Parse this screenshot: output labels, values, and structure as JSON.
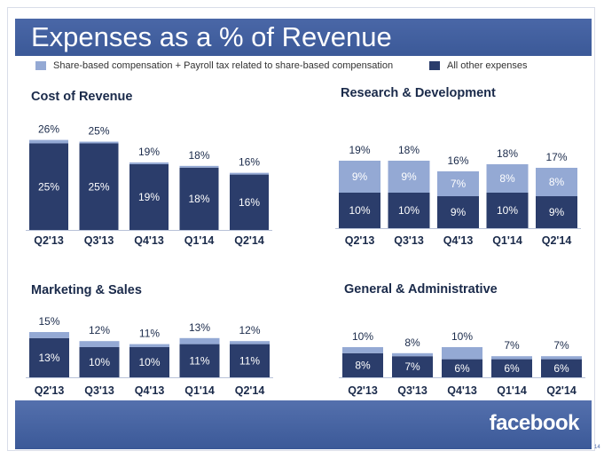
{
  "slide": {
    "title": "Expenses as a % of Revenue",
    "page_number": "14",
    "footer_logo": "facebook"
  },
  "legend": {
    "share_based": "Share-based compensation + Payroll tax related to share-based compensation",
    "other": "All other expenses"
  },
  "colors": {
    "title_bar": "#3b5998",
    "share_based": "#94a9d4",
    "other": "#2b3d6b",
    "label_text": "#1a2a4a"
  },
  "chart_data": [
    {
      "type": "bar",
      "stacked": true,
      "title": "Cost of Revenue",
      "categories": [
        "Q2'13",
        "Q3'13",
        "Q4'13",
        "Q1'14",
        "Q2'14"
      ],
      "series": [
        {
          "name": "All other expenses",
          "values": [
            25,
            25,
            19,
            18,
            16
          ],
          "labels": [
            "25%",
            "25%",
            "19%",
            "18%",
            "16%"
          ]
        },
        {
          "name": "Share-based compensation + Payroll tax related to share-based compensation",
          "values": [
            1,
            0.5,
            0.5,
            0.5,
            0.5
          ],
          "labels": [
            "",
            "",
            "",
            "",
            ""
          ]
        }
      ],
      "totals": [
        "26%",
        "25%",
        "19%",
        "18%",
        "16%"
      ]
    },
    {
      "type": "bar",
      "stacked": true,
      "title": "Research & Development",
      "categories": [
        "Q2'13",
        "Q3'13",
        "Q4'13",
        "Q1'14",
        "Q2'14"
      ],
      "series": [
        {
          "name": "All other expenses",
          "values": [
            10,
            10,
            9,
            10,
            9
          ],
          "labels": [
            "10%",
            "10%",
            "9%",
            "10%",
            "9%"
          ]
        },
        {
          "name": "Share-based compensation + Payroll tax related to share-based compensation",
          "values": [
            9,
            9,
            7,
            8,
            8
          ],
          "labels": [
            "9%",
            "9%",
            "7%",
            "8%",
            "8%"
          ]
        }
      ],
      "totals": [
        "19%",
        "18%",
        "16%",
        "18%",
        "17%"
      ]
    },
    {
      "type": "bar",
      "stacked": true,
      "title": "Marketing & Sales",
      "categories": [
        "Q2'13",
        "Q3'13",
        "Q4'13",
        "Q1'14",
        "Q2'14"
      ],
      "series": [
        {
          "name": "All other expenses",
          "values": [
            13,
            10,
            10,
            11,
            11
          ],
          "labels": [
            "13%",
            "10%",
            "10%",
            "11%",
            "11%"
          ]
        },
        {
          "name": "Share-based compensation + Payroll tax related to share-based compensation",
          "values": [
            2,
            2,
            1,
            2,
            1
          ],
          "labels": [
            "",
            "",
            "",
            "",
            ""
          ]
        }
      ],
      "totals": [
        "15%",
        "12%",
        "11%",
        "13%",
        "12%"
      ]
    },
    {
      "type": "bar",
      "stacked": true,
      "title": "General & Administrative",
      "categories": [
        "Q2'13",
        "Q3'13",
        "Q4'13",
        "Q1'14",
        "Q2'14"
      ],
      "series": [
        {
          "name": "All other expenses",
          "values": [
            8,
            7,
            6,
            6,
            6
          ],
          "labels": [
            "8%",
            "7%",
            "6%",
            "6%",
            "6%"
          ]
        },
        {
          "name": "Share-based compensation + Payroll tax related to share-based compensation",
          "values": [
            2,
            1,
            4,
            1,
            1
          ],
          "labels": [
            "",
            "",
            "",
            "",
            ""
          ]
        }
      ],
      "totals": [
        "10%",
        "8%",
        "10%",
        "7%",
        "7%"
      ]
    }
  ]
}
